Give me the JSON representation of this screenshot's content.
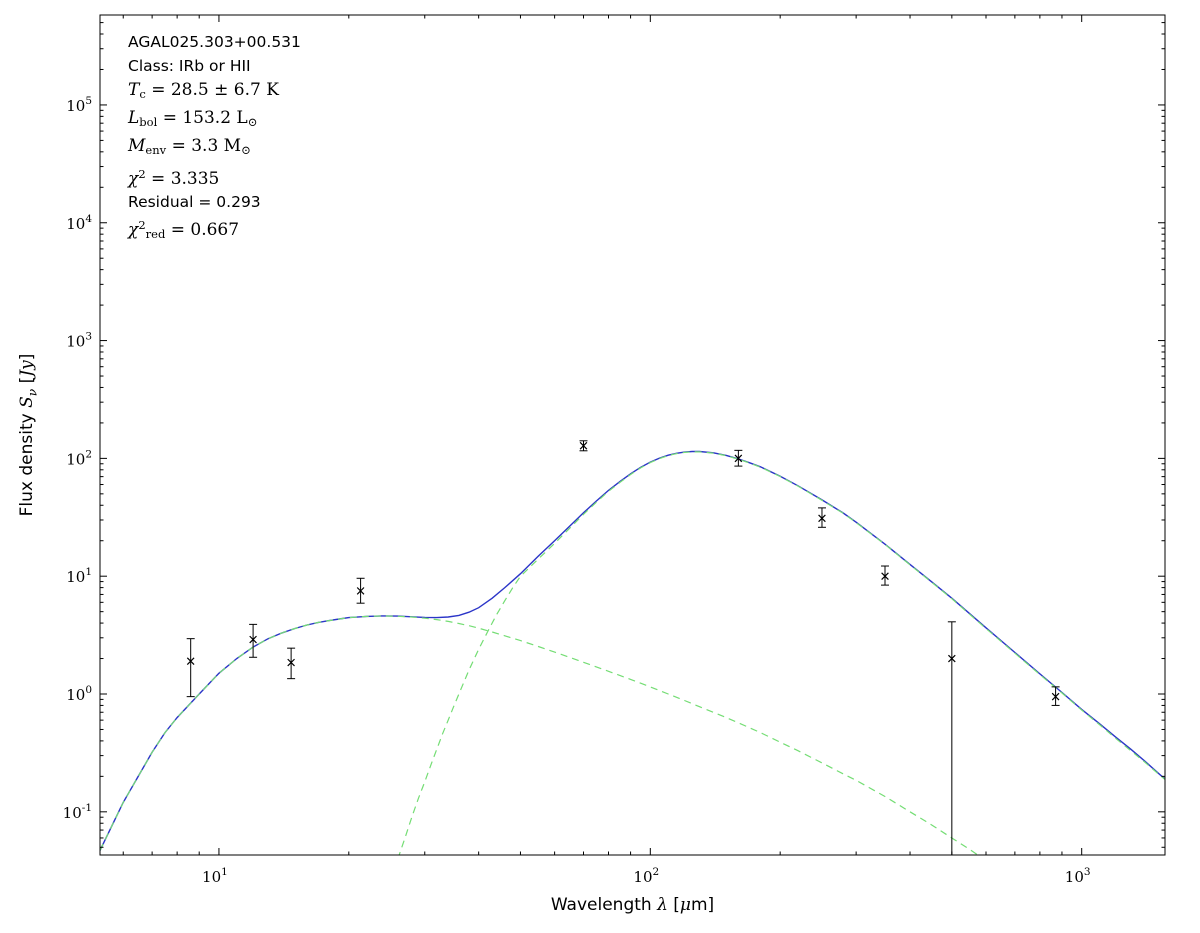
{
  "annotation": {
    "lines": [
      {
        "segs": [
          {
            "t": "AGAL025.303+00.531",
            "f": "sans"
          }
        ]
      },
      {
        "segs": [
          {
            "t": "Class: IRb or HII",
            "f": "sans"
          }
        ]
      },
      {
        "segs": [
          {
            "t": "T",
            "f": "serif",
            "i": true
          },
          {
            "t": "c",
            "f": "serif",
            "v": "sub"
          },
          {
            "t": " = 28.5 ± 6.7 K",
            "f": "serif"
          }
        ]
      },
      {
        "segs": [
          {
            "t": "L",
            "f": "serif",
            "i": true
          },
          {
            "t": "bol",
            "f": "serif",
            "v": "sub"
          },
          {
            "t": " = 153.2 ",
            "f": "serif"
          },
          {
            "t": "L",
            "f": "serif"
          },
          {
            "t": "⊙",
            "f": "serif",
            "v": "sub"
          }
        ]
      },
      {
        "segs": [
          {
            "t": "M",
            "f": "serif",
            "i": true
          },
          {
            "t": "env",
            "f": "serif",
            "v": "sub"
          },
          {
            "t": " = 3.3 ",
            "f": "serif"
          },
          {
            "t": "M",
            "f": "serif"
          },
          {
            "t": "⊙",
            "f": "serif",
            "v": "sub"
          }
        ]
      },
      {
        "segs": [
          {
            "t": "χ",
            "f": "serif",
            "i": true
          },
          {
            "t": "2",
            "f": "serif",
            "v": "sup"
          },
          {
            "t": " = 3.335",
            "f": "serif"
          }
        ]
      },
      {
        "segs": [
          {
            "t": "Residual = 0.293",
            "f": "sans"
          }
        ]
      },
      {
        "segs": [
          {
            "t": "χ",
            "f": "serif",
            "i": true
          },
          {
            "t": "2",
            "f": "serif",
            "v": "sup"
          },
          {
            "t": "red",
            "f": "serif",
            "v": "sub"
          },
          {
            "t": " = 0.667",
            "f": "serif"
          }
        ]
      }
    ]
  },
  "chart_data": {
    "type": "line",
    "title": "",
    "xlabel": "Wavelength λ [μm]",
    "ylabel": "Flux density Sν [Jy]",
    "xscale": "log",
    "yscale": "log",
    "xlim": [
      5.3,
      1560
    ],
    "ylim": [
      0.043,
      580000
    ],
    "x_major_ticks": [
      10,
      100,
      1000
    ],
    "y_major_ticks": [
      0.1,
      1,
      10,
      100,
      1000,
      10000,
      100000
    ],
    "grid": false,
    "frame_color": "#000000",
    "xlabel_segments": [
      {
        "t": "Wavelength ",
        "f": "sans"
      },
      {
        "t": "λ",
        "f": "serif",
        "i": true
      },
      {
        "t": " [",
        "f": "sans"
      },
      {
        "t": "μ",
        "f": "serif",
        "i": true
      },
      {
        "t": "m]",
        "f": "sans"
      }
    ],
    "ylabel_segments": [
      {
        "t": "Flux density ",
        "f": "sans"
      },
      {
        "t": "S",
        "f": "serif",
        "i": true
      },
      {
        "t": "ν",
        "f": "serif",
        "i": true,
        "v": "sub"
      },
      {
        "t": " [",
        "f": "sans"
      },
      {
        "t": "Jy",
        "f": "serif",
        "i": true
      },
      {
        "t": "]",
        "f": "sans"
      }
    ],
    "series": [
      {
        "name": "total-model-fit",
        "color": "#2b35c8",
        "style": "solid",
        "width": 1.4,
        "points": [
          [
            5.3,
            0.047
          ],
          [
            6,
            0.12
          ],
          [
            6.5,
            0.2
          ],
          [
            7,
            0.32
          ],
          [
            7.5,
            0.47
          ],
          [
            8,
            0.63
          ],
          [
            9,
            1.0
          ],
          [
            10,
            1.5
          ],
          [
            11,
            2.0
          ],
          [
            12,
            2.5
          ],
          [
            13,
            2.95
          ],
          [
            14,
            3.3
          ],
          [
            15,
            3.6
          ],
          [
            16,
            3.85
          ],
          [
            17,
            4.05
          ],
          [
            18,
            4.2
          ],
          [
            19,
            4.33
          ],
          [
            20,
            4.45
          ],
          [
            22,
            4.56
          ],
          [
            24,
            4.6
          ],
          [
            26,
            4.58
          ],
          [
            28,
            4.52
          ],
          [
            30,
            4.47
          ],
          [
            32,
            4.45
          ],
          [
            34,
            4.5
          ],
          [
            36,
            4.65
          ],
          [
            38,
            4.95
          ],
          [
            40,
            5.4
          ],
          [
            43,
            6.5
          ],
          [
            46,
            8.0
          ],
          [
            50,
            10.5
          ],
          [
            55,
            14.8
          ],
          [
            60,
            20
          ],
          [
            65,
            26.5
          ],
          [
            70,
            34.5
          ],
          [
            75,
            43.5
          ],
          [
            80,
            53.5
          ],
          [
            85,
            63.5
          ],
          [
            90,
            74
          ],
          [
            95,
            84
          ],
          [
            100,
            93
          ],
          [
            105,
            100.5
          ],
          [
            110,
            106.5
          ],
          [
            115,
            110.5
          ],
          [
            120,
            113
          ],
          [
            125,
            114.3
          ],
          [
            130,
            114.3
          ],
          [
            140,
            111.5
          ],
          [
            150,
            106
          ],
          [
            160,
            99
          ],
          [
            170,
            91.8
          ],
          [
            180,
            84.8
          ],
          [
            200,
            70.6
          ],
          [
            220,
            58.5
          ],
          [
            250,
            44.4
          ],
          [
            280,
            34.4
          ],
          [
            300,
            28.7
          ],
          [
            350,
            18.7
          ],
          [
            400,
            12.6
          ],
          [
            450,
            8.9
          ],
          [
            500,
            6.5
          ],
          [
            550,
            4.8
          ],
          [
            600,
            3.65
          ],
          [
            700,
            2.25
          ],
          [
            800,
            1.48
          ],
          [
            900,
            1.03
          ],
          [
            1000,
            0.74
          ],
          [
            1100,
            0.56
          ],
          [
            1200,
            0.43
          ],
          [
            1300,
            0.34
          ],
          [
            1400,
            0.27
          ],
          [
            1500,
            0.215
          ],
          [
            1560,
            0.19
          ]
        ]
      },
      {
        "name": "warm-component",
        "color": "#74dd74",
        "style": "dashed",
        "width": 1.2,
        "points": [
          [
            5.3,
            0.047
          ],
          [
            6,
            0.12
          ],
          [
            6.5,
            0.2
          ],
          [
            7,
            0.32
          ],
          [
            7.5,
            0.47
          ],
          [
            8,
            0.63
          ],
          [
            9,
            1.0
          ],
          [
            10,
            1.5
          ],
          [
            11,
            2.0
          ],
          [
            12,
            2.5
          ],
          [
            13,
            2.95
          ],
          [
            14,
            3.3
          ],
          [
            15,
            3.6
          ],
          [
            16,
            3.85
          ],
          [
            17,
            4.05
          ],
          [
            18,
            4.2
          ],
          [
            19,
            4.33
          ],
          [
            20,
            4.45
          ],
          [
            22,
            4.56
          ],
          [
            24,
            4.6
          ],
          [
            26,
            4.57
          ],
          [
            28,
            4.5
          ],
          [
            30,
            4.4
          ],
          [
            32,
            4.28
          ],
          [
            34,
            4.13
          ],
          [
            36,
            3.97
          ],
          [
            38,
            3.8
          ],
          [
            40,
            3.62
          ],
          [
            43,
            3.36
          ],
          [
            46,
            3.12
          ],
          [
            50,
            2.84
          ],
          [
            55,
            2.53
          ],
          [
            60,
            2.27
          ],
          [
            65,
            2.05
          ],
          [
            70,
            1.86
          ],
          [
            75,
            1.7
          ],
          [
            80,
            1.56
          ],
          [
            90,
            1.33
          ],
          [
            100,
            1.15
          ],
          [
            110,
            1.0
          ],
          [
            120,
            0.88
          ],
          [
            130,
            0.78
          ],
          [
            140,
            0.7
          ],
          [
            150,
            0.63
          ],
          [
            160,
            0.57
          ],
          [
            180,
            0.47
          ],
          [
            200,
            0.39
          ],
          [
            220,
            0.33
          ],
          [
            250,
            0.26
          ],
          [
            280,
            0.21
          ],
          [
            300,
            0.185
          ],
          [
            350,
            0.135
          ],
          [
            400,
            0.1
          ],
          [
            450,
            0.077
          ],
          [
            500,
            0.06
          ],
          [
            550,
            0.048
          ],
          [
            580,
            0.042
          ]
        ]
      },
      {
        "name": "cold-component",
        "color": "#74dd74",
        "style": "dashed",
        "width": 1.2,
        "points": [
          [
            26,
            0.04
          ],
          [
            27,
            0.06
          ],
          [
            28,
            0.09
          ],
          [
            29,
            0.13
          ],
          [
            30,
            0.18
          ],
          [
            31,
            0.25
          ],
          [
            32,
            0.34
          ],
          [
            33,
            0.46
          ],
          [
            34,
            0.6
          ],
          [
            35,
            0.78
          ],
          [
            36,
            1.0
          ],
          [
            38,
            1.6
          ],
          [
            40,
            2.4
          ],
          [
            42,
            3.4
          ],
          [
            44,
            4.7
          ],
          [
            46,
            6.2
          ],
          [
            48,
            8.0
          ],
          [
            50,
            10.0
          ],
          [
            55,
            14.0
          ],
          [
            60,
            19.0
          ],
          [
            65,
            25.5
          ],
          [
            70,
            33.5
          ],
          [
            75,
            42.5
          ],
          [
            80,
            52.5
          ],
          [
            85,
            62.5
          ],
          [
            90,
            73
          ],
          [
            95,
            83
          ],
          [
            100,
            92
          ],
          [
            105,
            99.5
          ],
          [
            110,
            105.5
          ],
          [
            115,
            109.7
          ],
          [
            120,
            112.3
          ],
          [
            125,
            113.5
          ],
          [
            130,
            113.6
          ],
          [
            140,
            110.8
          ],
          [
            150,
            105.4
          ],
          [
            160,
            98.5
          ],
          [
            170,
            91.2
          ],
          [
            180,
            84.3
          ],
          [
            200,
            70.2
          ],
          [
            220,
            58.2
          ],
          [
            250,
            44.1
          ],
          [
            280,
            34.2
          ],
          [
            300,
            28.5
          ],
          [
            350,
            18.6
          ],
          [
            400,
            12.5
          ],
          [
            450,
            8.82
          ],
          [
            500,
            6.44
          ],
          [
            550,
            4.75
          ],
          [
            600,
            3.6
          ],
          [
            700,
            2.22
          ],
          [
            800,
            1.46
          ],
          [
            900,
            1.02
          ],
          [
            1000,
            0.73
          ],
          [
            1100,
            0.55
          ],
          [
            1200,
            0.42
          ],
          [
            1300,
            0.33
          ],
          [
            1400,
            0.265
          ],
          [
            1500,
            0.212
          ],
          [
            1560,
            0.188
          ]
        ]
      }
    ],
    "data_points": {
      "name": "photometry-points",
      "color": "#000000",
      "marker": "x",
      "points": [
        {
          "x": 8.6,
          "y": 1.9,
          "lo": 0.95,
          "hi": 2.95
        },
        {
          "x": 12,
          "y": 2.9,
          "lo": 2.05,
          "hi": 3.9
        },
        {
          "x": 14.7,
          "y": 1.85,
          "lo": 1.35,
          "hi": 2.45
        },
        {
          "x": 21.3,
          "y": 7.5,
          "lo": 5.9,
          "hi": 9.6
        },
        {
          "x": 70,
          "y": 128,
          "lo": 116,
          "hi": 141
        },
        {
          "x": 160,
          "y": 100,
          "lo": 86,
          "hi": 117
        },
        {
          "x": 250,
          "y": 31,
          "lo": 26,
          "hi": 38
        },
        {
          "x": 350,
          "y": 10,
          "lo": 8.4,
          "hi": 12.2
        },
        {
          "x": 500,
          "y": 2.0,
          "lo": 0.043,
          "hi": 4.1
        },
        {
          "x": 870,
          "y": 0.95,
          "lo": 0.8,
          "hi": 1.15
        }
      ]
    }
  }
}
